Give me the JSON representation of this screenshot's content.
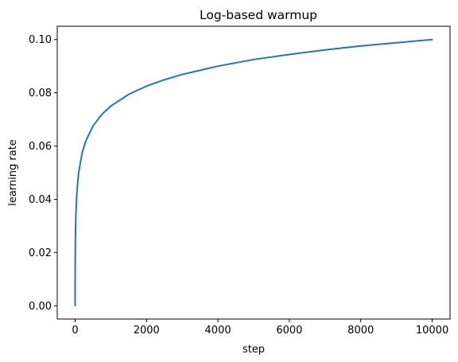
{
  "chart_data": {
    "type": "line",
    "title": "Log-based warmup",
    "xlabel": "step",
    "ylabel": "learning rate",
    "xlim": [
      -500,
      10500
    ],
    "ylim": [
      -0.005,
      0.105
    ],
    "grid": false,
    "x_ticks": [
      0,
      2000,
      4000,
      6000,
      8000,
      10000
    ],
    "x_tick_labels": [
      "0",
      "2000",
      "4000",
      "6000",
      "8000",
      "10000"
    ],
    "y_ticks": [
      0.0,
      0.02,
      0.04,
      0.06,
      0.08,
      0.1
    ],
    "y_tick_labels": [
      "0.00",
      "0.02",
      "0.04",
      "0.06",
      "0.08",
      "0.10"
    ],
    "series": [
      {
        "color": "#1f77b4",
        "x": [
          0,
          1,
          2,
          5,
          10,
          20,
          50,
          100,
          200,
          300,
          500,
          750,
          1000,
          1500,
          2000,
          2500,
          3000,
          4000,
          5000,
          6000,
          7000,
          8000,
          9000,
          10000
        ],
        "y": [
          0.0,
          0.0075,
          0.0119,
          0.0195,
          0.026,
          0.0331,
          0.0427,
          0.0501,
          0.0576,
          0.0619,
          0.0675,
          0.0719,
          0.075,
          0.0794,
          0.0825,
          0.0849,
          0.0869,
          0.09,
          0.0925,
          0.0944,
          0.0961,
          0.0976,
          0.0988,
          0.1
        ]
      }
    ]
  }
}
